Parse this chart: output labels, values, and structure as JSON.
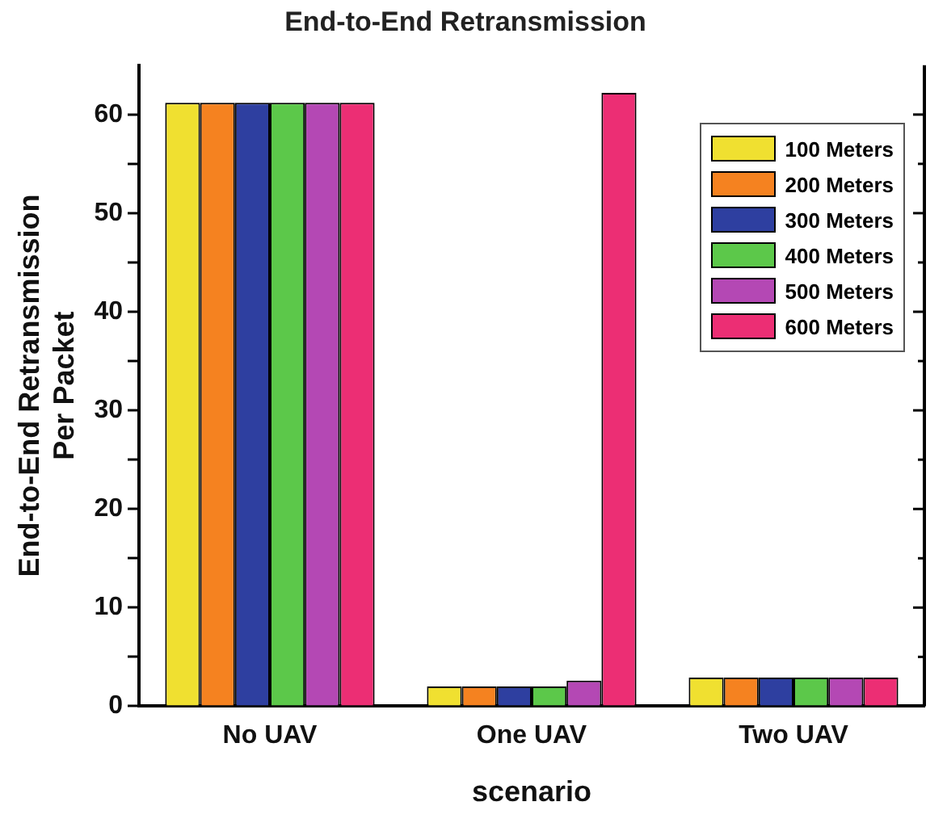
{
  "chart_data": {
    "type": "bar",
    "title": "End-to-End Retransmission",
    "xlabel": "scenario",
    "ylabel": "End-to-End Retransmission\nPer Packet",
    "categories": [
      "No UAV",
      "One UAV",
      "Two UAV"
    ],
    "series": [
      {
        "name": "100 Meters",
        "color": "#f0e030",
        "values": [
          61.2,
          2.0,
          2.9
        ]
      },
      {
        "name": "200 Meters",
        "color": "#f58220",
        "values": [
          61.2,
          2.0,
          2.9
        ]
      },
      {
        "name": "300 Meters",
        "color": "#2e3fa0",
        "values": [
          61.2,
          2.0,
          2.9
        ]
      },
      {
        "name": "400 Meters",
        "color": "#5cc84a",
        "values": [
          61.2,
          2.0,
          2.9
        ]
      },
      {
        "name": "500 Meters",
        "color": "#b448b4",
        "values": [
          61.2,
          2.6,
          2.9
        ]
      },
      {
        "name": "600 Meters",
        "color": "#ec2e74",
        "values": [
          61.2,
          62.2,
          2.9
        ]
      }
    ],
    "ylim": [
      0,
      65
    ],
    "yticks": [
      0,
      {
        "value": 5,
        "label": null
      },
      10,
      {
        "value": 15,
        "label": null
      },
      20,
      {
        "value": 25,
        "label": null
      },
      30,
      {
        "value": 35,
        "label": null
      },
      40,
      {
        "value": 45,
        "label": null
      },
      50,
      {
        "value": 55,
        "label": null
      },
      60
    ],
    "grid": false,
    "legend": "top right"
  }
}
